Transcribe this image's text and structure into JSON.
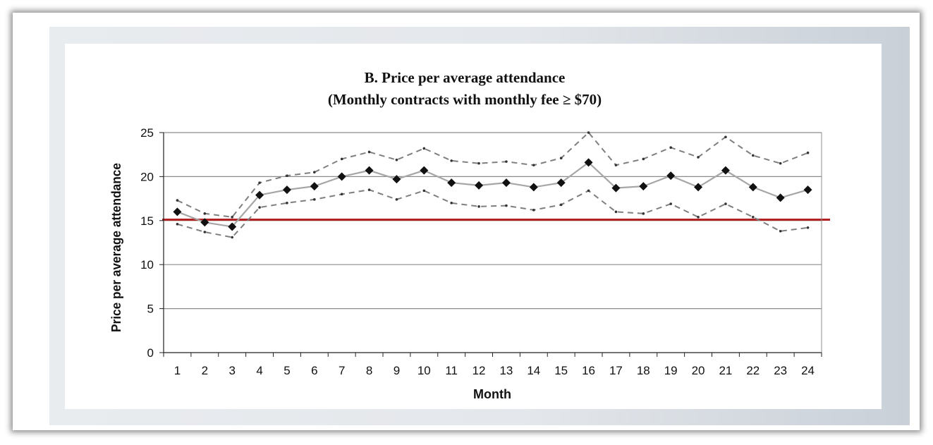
{
  "chart_data": {
    "type": "line",
    "title": "B.  Price per average attendance",
    "subtitle": "(Monthly contracts with monthly fee ≥ $70)",
    "xlabel": "Month",
    "ylabel": "Price per average attendance",
    "ylim": [
      0,
      25
    ],
    "yticks": [
      "0",
      "5",
      "10",
      "15",
      "20",
      "25"
    ],
    "categories": [
      "1",
      "2",
      "3",
      "4",
      "5",
      "6",
      "7",
      "8",
      "9",
      "10",
      "11",
      "12",
      "13",
      "14",
      "15",
      "16",
      "17",
      "18",
      "19",
      "20",
      "21",
      "22",
      "23",
      "24"
    ],
    "grid": "horizontal",
    "legend": "none",
    "reference_line": {
      "value": 15.1,
      "color": "#b22222"
    },
    "series": [
      {
        "role": "upper band",
        "style": "dashed",
        "color": "#7f7f7f",
        "values": [
          17.3,
          15.8,
          15.4,
          19.3,
          20.1,
          20.5,
          22.0,
          22.8,
          21.9,
          23.2,
          21.8,
          21.5,
          21.7,
          21.3,
          22.1,
          25.0,
          21.3,
          22.0,
          23.3,
          22.2,
          24.5,
          22.4,
          21.5,
          22.7
        ]
      },
      {
        "role": "estimate",
        "style": "solid",
        "color": "#a6a6a6",
        "marker": "diamond",
        "values": [
          16.0,
          14.8,
          14.3,
          17.9,
          18.5,
          18.9,
          20.0,
          20.7,
          19.7,
          20.7,
          19.3,
          19.0,
          19.3,
          18.8,
          19.3,
          21.6,
          18.7,
          18.9,
          20.1,
          18.8,
          20.7,
          18.8,
          17.6,
          18.5
        ]
      },
      {
        "role": "lower band",
        "style": "dashed",
        "color": "#7f7f7f",
        "values": [
          14.6,
          13.7,
          13.1,
          16.5,
          17.0,
          17.4,
          18.0,
          18.5,
          17.4,
          18.4,
          17.0,
          16.6,
          16.7,
          16.2,
          16.8,
          18.4,
          16.0,
          15.8,
          16.9,
          15.4,
          16.9,
          15.4,
          13.8,
          14.2
        ]
      }
    ]
  }
}
